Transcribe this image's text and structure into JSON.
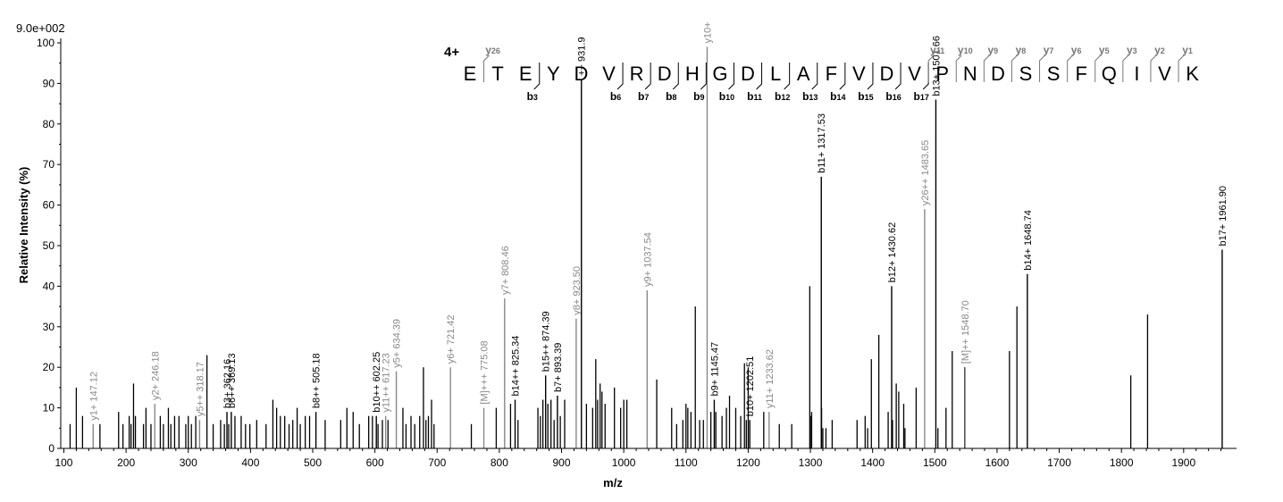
{
  "chart_data": {
    "type": "bar",
    "max_intensity_label": "9.0e+002",
    "xlabel": "m/z",
    "ylabel": "Relative   Intensity (%)",
    "xlim": [
      95,
      1985
    ],
    "ylim": [
      0,
      100
    ],
    "x_ticks": [
      100,
      200,
      300,
      400,
      500,
      600,
      700,
      800,
      900,
      1000,
      1100,
      1200,
      1300,
      1400,
      1500,
      1600,
      1700,
      1800,
      1900
    ],
    "y_ticks": [
      0,
      10,
      20,
      30,
      40,
      50,
      60,
      70,
      80,
      90,
      100
    ],
    "colors": {
      "matched_b": "#000000",
      "matched_y": "#888888",
      "unmatched": "#000000"
    },
    "charge_state": "4+",
    "sequence": [
      "E",
      "T",
      "E",
      "Y",
      "D",
      "V",
      "R",
      "D",
      "H",
      "G",
      "D",
      "L",
      "A",
      "F",
      "V",
      "D",
      "V",
      "P",
      "N",
      "D",
      "S",
      "S",
      "F",
      "Q",
      "I",
      "V",
      "K"
    ],
    "b_ion_markers": [
      {
        "after": 3,
        "label": "b",
        "num": "3"
      },
      {
        "after": 6,
        "label": "b",
        "num": "6"
      },
      {
        "after": 7,
        "label": "b",
        "num": "7"
      },
      {
        "after": 8,
        "label": "b",
        "num": "8"
      },
      {
        "after": 9,
        "label": "b",
        "num": "9"
      },
      {
        "after": 10,
        "label": "b",
        "num": "10"
      },
      {
        "after": 11,
        "label": "b",
        "num": "11"
      },
      {
        "after": 12,
        "label": "b",
        "num": "12"
      },
      {
        "after": 13,
        "label": "b",
        "num": "13"
      },
      {
        "after": 14,
        "label": "b",
        "num": "14"
      },
      {
        "after": 15,
        "label": "b",
        "num": "15"
      },
      {
        "after": 16,
        "label": "b",
        "num": "16"
      },
      {
        "after": 17,
        "label": "b",
        "num": "17"
      }
    ],
    "y_ion_markers": [
      {
        "before": 1,
        "label": "y",
        "num": "26"
      },
      {
        "before": 17,
        "label": "y",
        "num": "11"
      },
      {
        "before": 18,
        "label": "y",
        "num": "10"
      },
      {
        "before": 19,
        "label": "y",
        "num": "9"
      },
      {
        "before": 20,
        "label": "y",
        "num": "8"
      },
      {
        "before": 21,
        "label": "y",
        "num": "7"
      },
      {
        "before": 22,
        "label": "y",
        "num": "6"
      },
      {
        "before": 23,
        "label": "y",
        "num": "5"
      },
      {
        "before": 24,
        "label": "y",
        "num": "3"
      },
      {
        "before": 25,
        "label": "y",
        "num": "2"
      },
      {
        "before": 26,
        "label": "y",
        "num": "1"
      }
    ],
    "labeled_peaks": [
      {
        "mz": 147.12,
        "y": 6,
        "label": "y1+ 147.12",
        "type": "y"
      },
      {
        "mz": 246.18,
        "y": 11,
        "label": "y2+ 246.18",
        "type": "y"
      },
      {
        "mz": 318.17,
        "y": 7,
        "label": "y5++ 318.17",
        "type": "y"
      },
      {
        "mz": 362.16,
        "y": 9,
        "label": "b3+ 362.16",
        "type": "b"
      },
      {
        "mz": 369.13,
        "y": 9,
        "label": "b6++ 369.13",
        "type": "b"
      },
      {
        "mz": 505.18,
        "y": 9,
        "label": "b8++ 505.18",
        "type": "b"
      },
      {
        "mz": 602.25,
        "y": 8,
        "label": "b10++ 602.25",
        "type": "b"
      },
      {
        "mz": 617.23,
        "y": 8,
        "label": "y11++ 617.23",
        "type": "y"
      },
      {
        "mz": 634.39,
        "y": 19,
        "label": "y5+ 634.39",
        "type": "y"
      },
      {
        "mz": 721.42,
        "y": 20,
        "label": "y6+ 721.42",
        "type": "y"
      },
      {
        "mz": 775.08,
        "y": 10,
        "label": "[M]+++ 775.08",
        "type": "y"
      },
      {
        "mz": 808.46,
        "y": 37,
        "label": "y7+ 808.46",
        "type": "y"
      },
      {
        "mz": 825.34,
        "y": 12,
        "label": "b14++ 825.34",
        "type": "b"
      },
      {
        "mz": 874.39,
        "y": 18,
        "label": "b15++ 874.39",
        "type": "b"
      },
      {
        "mz": 893.39,
        "y": 13,
        "label": "b7+ 893.39",
        "type": "b"
      },
      {
        "mz": 923.5,
        "y": 32,
        "label": "y8+ 923.50",
        "type": "y"
      },
      {
        "mz": 931.9,
        "y": 91,
        "label": "++ 931.9",
        "type": "b"
      },
      {
        "mz": 1037.54,
        "y": 39,
        "label": "y9+ 1037.54",
        "type": "y"
      },
      {
        "mz": 1134.0,
        "y": 99,
        "label": "y10+",
        "type": "y"
      },
      {
        "mz": 1145.47,
        "y": 12,
        "label": "b9+ 1145.47",
        "type": "b"
      },
      {
        "mz": 1202.51,
        "y": 7,
        "label": "b10+ 1202.51",
        "type": "b"
      },
      {
        "mz": 1233.62,
        "y": 9,
        "label": "y11+ 1233.62",
        "type": "y"
      },
      {
        "mz": 1317.53,
        "y": 67,
        "label": "b11+ 1317.53",
        "type": "b"
      },
      {
        "mz": 1430.62,
        "y": 40,
        "label": "b12+ 1430.62",
        "type": "b"
      },
      {
        "mz": 1483.65,
        "y": 59,
        "label": "y26++ 1483.65",
        "type": "y"
      },
      {
        "mz": 1501.66,
        "y": 86,
        "label": "b13+ 1501.66",
        "type": "b"
      },
      {
        "mz": 1548.7,
        "y": 20,
        "label": "[M]++ 1548.70",
        "type": "y"
      },
      {
        "mz": 1648.74,
        "y": 43,
        "label": "b14+ 1648.74",
        "type": "b"
      },
      {
        "mz": 1961.9,
        "y": 49,
        "label": "b17+ 1961.90",
        "type": "b"
      }
    ],
    "unlabeled_peaks": [
      [
        110,
        6
      ],
      [
        120,
        15
      ],
      [
        130,
        8
      ],
      [
        158,
        6
      ],
      [
        188,
        9
      ],
      [
        195,
        6
      ],
      [
        205,
        8
      ],
      [
        208,
        6
      ],
      [
        212,
        16
      ],
      [
        215,
        8
      ],
      [
        228,
        6
      ],
      [
        232,
        10
      ],
      [
        240,
        6
      ],
      [
        255,
        8
      ],
      [
        260,
        6
      ],
      [
        268,
        10
      ],
      [
        272,
        6
      ],
      [
        278,
        8
      ],
      [
        285,
        8
      ],
      [
        296,
        6
      ],
      [
        300,
        8
      ],
      [
        305,
        6
      ],
      [
        312,
        8
      ],
      [
        330,
        23
      ],
      [
        340,
        6
      ],
      [
        352,
        7
      ],
      [
        358,
        6
      ],
      [
        365,
        6
      ],
      [
        375,
        8
      ],
      [
        385,
        8
      ],
      [
        392,
        6
      ],
      [
        399,
        6
      ],
      [
        410,
        7
      ],
      [
        425,
        6
      ],
      [
        436,
        12
      ],
      [
        442,
        10
      ],
      [
        448,
        8
      ],
      [
        455,
        8
      ],
      [
        462,
        6
      ],
      [
        468,
        7
      ],
      [
        475,
        10
      ],
      [
        480,
        6
      ],
      [
        488,
        8
      ],
      [
        495,
        8
      ],
      [
        520,
        7
      ],
      [
        545,
        7
      ],
      [
        555,
        10
      ],
      [
        565,
        9
      ],
      [
        575,
        6
      ],
      [
        590,
        8
      ],
      [
        596,
        8
      ],
      [
        605,
        6
      ],
      [
        612,
        7
      ],
      [
        621,
        7
      ],
      [
        645,
        10
      ],
      [
        650,
        6
      ],
      [
        658,
        8
      ],
      [
        664,
        6
      ],
      [
        672,
        8
      ],
      [
        678,
        20
      ],
      [
        682,
        7
      ],
      [
        686,
        8
      ],
      [
        691,
        12
      ],
      [
        695,
        6
      ],
      [
        755,
        6
      ],
      [
        795,
        10
      ],
      [
        818,
        11
      ],
      [
        830,
        7
      ],
      [
        862,
        10
      ],
      [
        866,
        8
      ],
      [
        870,
        12
      ],
      [
        878,
        11
      ],
      [
        883,
        12
      ],
      [
        888,
        7
      ],
      [
        898,
        8
      ],
      [
        905,
        12
      ],
      [
        940,
        11
      ],
      [
        950,
        10
      ],
      [
        955,
        22
      ],
      [
        958,
        12
      ],
      [
        962,
        16
      ],
      [
        965,
        14
      ],
      [
        970,
        11
      ],
      [
        985,
        15
      ],
      [
        995,
        10
      ],
      [
        1000,
        12
      ],
      [
        1005,
        12
      ],
      [
        1053,
        17
      ],
      [
        1077,
        10
      ],
      [
        1085,
        6
      ],
      [
        1095,
        7
      ],
      [
        1100,
        11
      ],
      [
        1103,
        10
      ],
      [
        1108,
        9
      ],
      [
        1115,
        35
      ],
      [
        1122,
        7
      ],
      [
        1128,
        7
      ],
      [
        1140,
        9
      ],
      [
        1148,
        9
      ],
      [
        1158,
        8
      ],
      [
        1165,
        10
      ],
      [
        1170,
        13
      ],
      [
        1180,
        10
      ],
      [
        1188,
        8
      ],
      [
        1194,
        21
      ],
      [
        1197,
        7
      ],
      [
        1200,
        20
      ],
      [
        1225,
        9
      ],
      [
        1250,
        6
      ],
      [
        1270,
        6
      ],
      [
        1299,
        40
      ],
      [
        1300,
        8
      ],
      [
        1302,
        9
      ],
      [
        1318,
        10
      ],
      [
        1320,
        5
      ],
      [
        1325,
        5
      ],
      [
        1335,
        7
      ],
      [
        1375,
        7
      ],
      [
        1388,
        8
      ],
      [
        1392,
        5
      ],
      [
        1398,
        22
      ],
      [
        1410,
        28
      ],
      [
        1425,
        9
      ],
      [
        1432,
        7
      ],
      [
        1438,
        16
      ],
      [
        1442,
        14
      ],
      [
        1450,
        11
      ],
      [
        1452,
        5
      ],
      [
        1470,
        15
      ],
      [
        1505,
        5
      ],
      [
        1518,
        10
      ],
      [
        1528,
        24
      ],
      [
        1548,
        20
      ],
      [
        1620,
        24
      ],
      [
        1632,
        35
      ],
      [
        1815,
        18
      ],
      [
        1842,
        33
      ]
    ]
  }
}
